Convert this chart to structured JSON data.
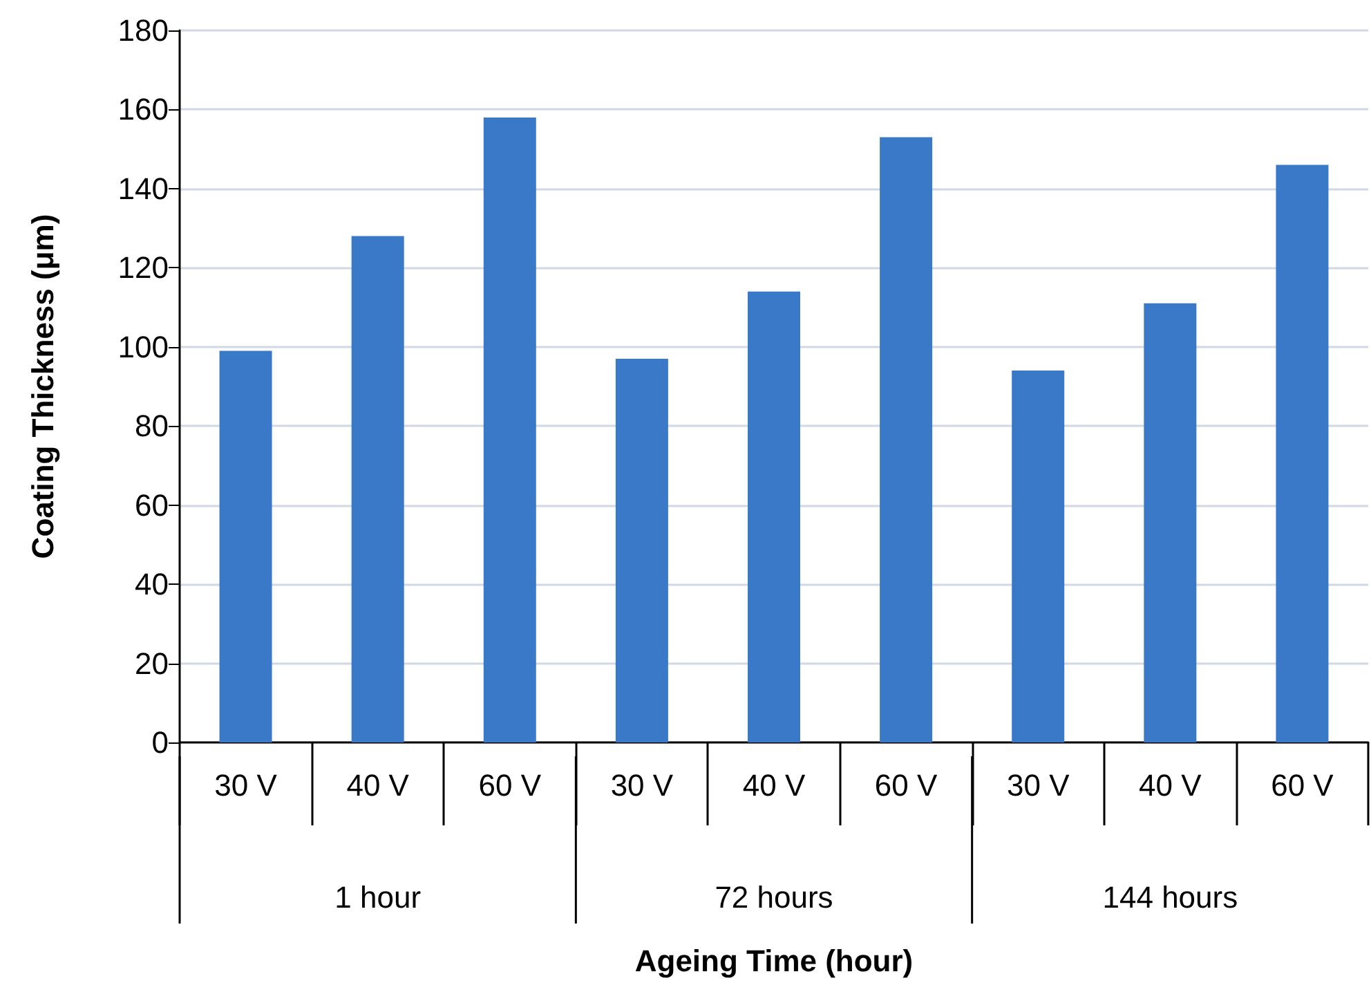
{
  "chart_data": {
    "type": "bar",
    "xlabel": "Ageing Time (hour)",
    "ylabel": "Coating Thickness (μm)",
    "categories": [
      "30 V",
      "40 V",
      "60 V",
      "30 V",
      "40 V",
      "60 V",
      "30 V",
      "40 V",
      "60 V"
    ],
    "values": [
      99,
      128,
      158,
      97,
      114,
      153,
      94,
      111,
      146
    ],
    "color": "#3a78c8",
    "annotations": [
      "1 hour",
      "72 hours",
      "144 hours"
    ],
    "ylim": [
      0,
      180
    ],
    "yticks": [
      0,
      20,
      40,
      60,
      80,
      100,
      120,
      140,
      160,
      180
    ],
    "grid": "y"
  }
}
